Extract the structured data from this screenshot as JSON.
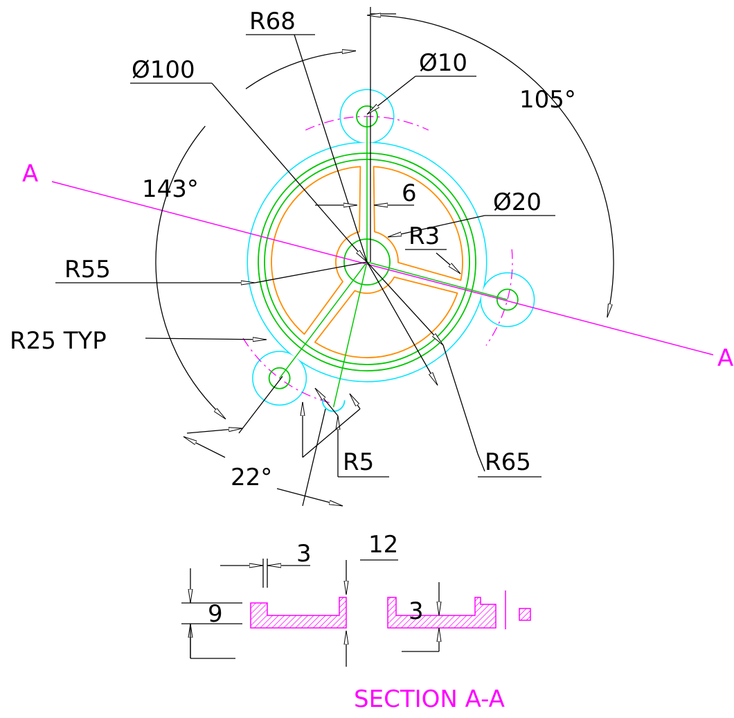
{
  "main_view": {
    "dimensions": {
      "r68": "R68",
      "dia100": "Ø100",
      "dia10": "Ø10",
      "angle105": "105°",
      "angle143": "143°",
      "web": "6",
      "dia20": "Ø20",
      "r3": "R3",
      "r55": "R55",
      "r25": "R25 TYP",
      "angle22": "22°",
      "r5": "R5",
      "r65": "R65"
    }
  },
  "section_line": {
    "start": "A",
    "end": "A"
  },
  "section_view": {
    "title": "SECTION A-A",
    "dimensions": {
      "gap": "3",
      "wall": "12",
      "height": "9",
      "floor": "3"
    }
  }
}
